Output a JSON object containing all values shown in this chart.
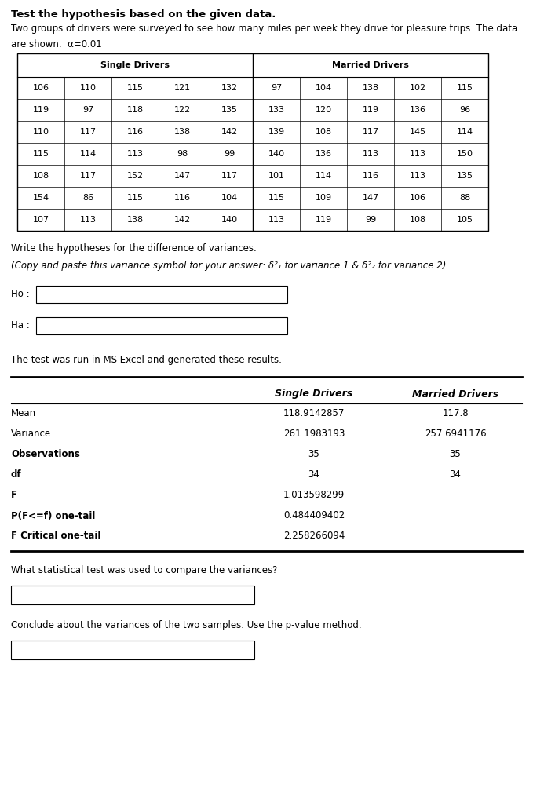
{
  "title": "Test the hypothesis based on the given data.",
  "intro_line1": "Two groups of drivers were surveyed to see how many miles per week they drive for pleasure trips. The data",
  "intro_line2": "are shown.  α=0.01",
  "table_header_single": "Single Drivers",
  "table_header_married": "Married Drivers",
  "table_data": [
    [
      106,
      110,
      115,
      121,
      132,
      97,
      104,
      138,
      102,
      115
    ],
    [
      119,
      97,
      118,
      122,
      135,
      133,
      120,
      119,
      136,
      96
    ],
    [
      110,
      117,
      116,
      138,
      142,
      139,
      108,
      117,
      145,
      114
    ],
    [
      115,
      114,
      113,
      98,
      99,
      140,
      136,
      113,
      113,
      150
    ],
    [
      108,
      117,
      152,
      147,
      117,
      101,
      114,
      116,
      113,
      135
    ],
    [
      154,
      86,
      115,
      116,
      104,
      115,
      109,
      147,
      106,
      88
    ],
    [
      107,
      113,
      138,
      142,
      140,
      113,
      119,
      99,
      108,
      105
    ]
  ],
  "hypotheses_text": "Write the hypotheses for the difference of variances.",
  "copy_paste_text": "(Copy and paste this variance symbol for your answer: δ²₁ for variance 1 & δ²₂ for variance 2)",
  "ho_label": "Ho :",
  "ha_label": "Ha :",
  "excel_text": "The test was run in MS Excel and generated these results.",
  "results_col1": "Single Drivers",
  "results_col2": "Married Drivers",
  "results_rows": [
    [
      "Mean",
      "118.9142857",
      "117.8"
    ],
    [
      "Variance",
      "261.1983193",
      "257.6941176"
    ],
    [
      "Observations",
      "35",
      "35"
    ],
    [
      "df",
      "34",
      "34"
    ],
    [
      "F",
      "1.013598299",
      ""
    ],
    [
      "P(F<=f) one-tail",
      "0.484409402",
      ""
    ],
    [
      "F Critical one-tail",
      "2.258266094",
      ""
    ]
  ],
  "results_bold_labels": [
    "Observations",
    "df",
    "F",
    "P(F<=f) one-tail",
    "F Critical one-tail"
  ],
  "stat_test_label": "What statistical test was used to compare the variances?",
  "conclude_label": "Conclude about the variances of the two samples. Use the p-value method.",
  "bg_color": "#ffffff",
  "text_color": "#000000"
}
